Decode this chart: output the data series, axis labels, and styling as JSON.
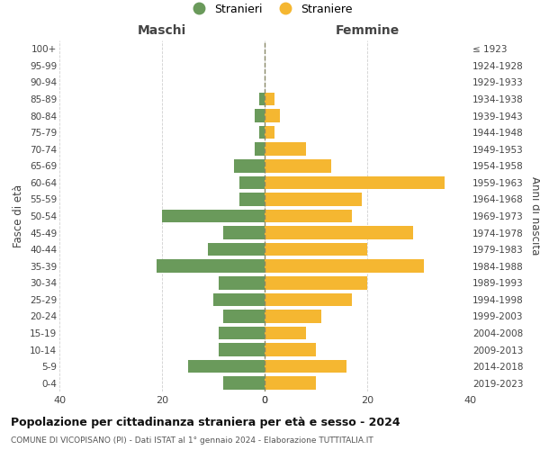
{
  "age_groups": [
    "0-4",
    "5-9",
    "10-14",
    "15-19",
    "20-24",
    "25-29",
    "30-34",
    "35-39",
    "40-44",
    "45-49",
    "50-54",
    "55-59",
    "60-64",
    "65-69",
    "70-74",
    "75-79",
    "80-84",
    "85-89",
    "90-94",
    "95-99",
    "100+"
  ],
  "birth_years": [
    "2019-2023",
    "2014-2018",
    "2009-2013",
    "2004-2008",
    "1999-2003",
    "1994-1998",
    "1989-1993",
    "1984-1988",
    "1979-1983",
    "1974-1978",
    "1969-1973",
    "1964-1968",
    "1959-1963",
    "1954-1958",
    "1949-1953",
    "1944-1948",
    "1939-1943",
    "1934-1938",
    "1929-1933",
    "1924-1928",
    "≤ 1923"
  ],
  "maschi": [
    8,
    15,
    9,
    9,
    8,
    10,
    9,
    21,
    11,
    8,
    20,
    5,
    5,
    6,
    2,
    1,
    2,
    1,
    0,
    0,
    0
  ],
  "femmine": [
    10,
    16,
    10,
    8,
    11,
    17,
    20,
    31,
    20,
    29,
    17,
    19,
    35,
    13,
    8,
    2,
    3,
    2,
    0,
    0,
    0
  ],
  "color_maschi": "#6a9a5b",
  "color_femmine": "#f5b731",
  "title": "Popolazione per cittadinanza straniera per età e sesso - 2024",
  "subtitle": "COMUNE DI VICOPISANO (PI) - Dati ISTAT al 1° gennaio 2024 - Elaborazione TUTTITALIA.IT",
  "xlabel_left": "Maschi",
  "xlabel_right": "Femmine",
  "ylabel_left": "Fasce di età",
  "ylabel_right": "Anni di nascita",
  "xlim": 40,
  "legend_maschi": "Stranieri",
  "legend_femmine": "Straniere",
  "background_color": "#ffffff",
  "grid_color": "#d0d0d0"
}
